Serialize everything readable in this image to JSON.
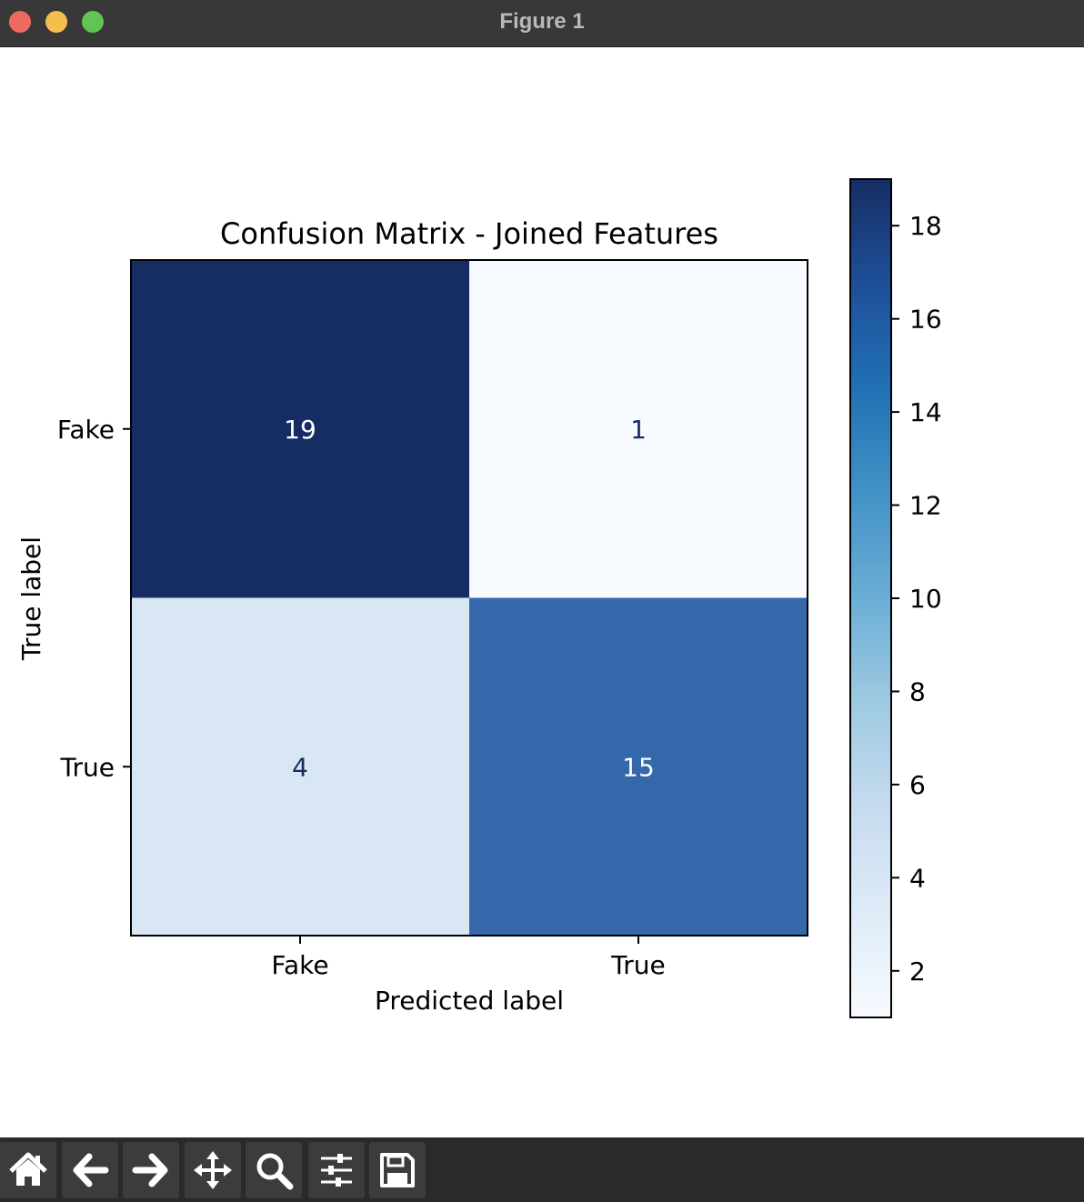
{
  "window": {
    "title": "Figure 1"
  },
  "toolbar": {
    "buttons": [
      {
        "name": "home-button",
        "icon": "home-icon"
      },
      {
        "name": "back-button",
        "icon": "arrow-left-icon"
      },
      {
        "name": "forward-button",
        "icon": "arrow-right-icon"
      },
      {
        "name": "pan-button",
        "icon": "move-icon"
      },
      {
        "name": "zoom-button",
        "icon": "magnifier-icon"
      },
      {
        "name": "configure-subplots-button",
        "icon": "sliders-icon"
      },
      {
        "name": "save-button",
        "icon": "floppy-disk-icon"
      }
    ]
  },
  "chart_data": {
    "type": "heatmap",
    "title": "Confusion Matrix - Joined Features",
    "xlabel": "Predicted label",
    "ylabel": "True label",
    "x_categories": [
      "Fake",
      "True"
    ],
    "y_categories": [
      "Fake",
      "True"
    ],
    "values": [
      [
        19,
        1
      ],
      [
        4,
        15
      ]
    ],
    "colormap": "Blues",
    "colorbar": {
      "range": [
        1,
        19
      ],
      "ticks": [
        2,
        4,
        6,
        8,
        10,
        12,
        14,
        16,
        18
      ]
    },
    "cell_colors": [
      [
        "#162d64",
        "#f7fbff"
      ],
      [
        "#d9e6f3",
        "#3468aa"
      ]
    ],
    "text_colors": [
      [
        "#ffffff",
        "#162d64"
      ],
      [
        "#162d64",
        "#ffffff"
      ]
    ]
  }
}
